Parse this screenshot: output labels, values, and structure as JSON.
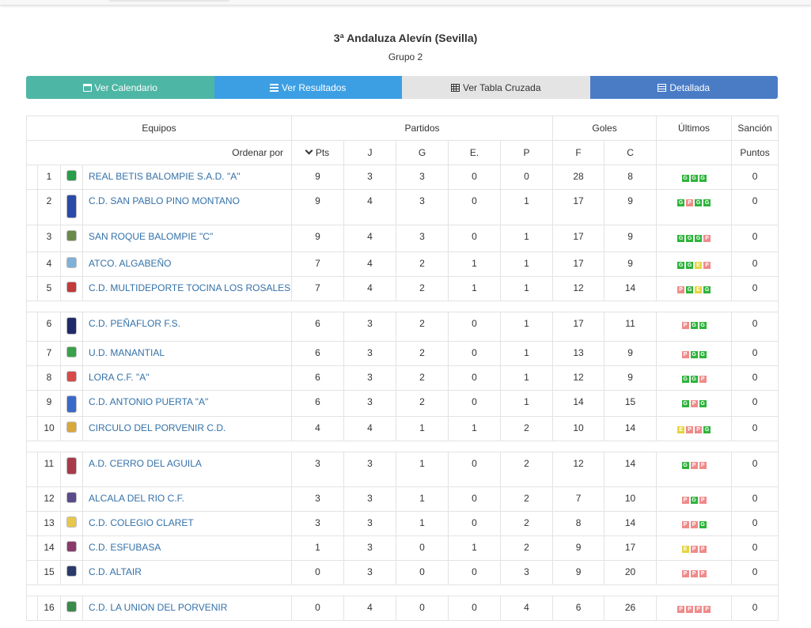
{
  "title": "3ª Andaluza Alevín (Sevilla)",
  "subtitle": "Grupo 2",
  "nav": {
    "calendar": "Ver Calendario",
    "results": "Ver Resultados",
    "cross": "Ver Tabla Cruzada",
    "detailed": "Detallada"
  },
  "headers": {
    "equipos": "Equipos",
    "partidos": "Partidos",
    "goles": "Goles",
    "ultimos": "Últimos",
    "sancion": "Sanción",
    "ordenar": "Ordenar por",
    "pts": "Pts",
    "j": "J",
    "g": "G",
    "e": "E.",
    "p": "P",
    "f": "F",
    "c": "C",
    "puntos": "Puntos"
  },
  "teams": [
    {
      "pos": "1",
      "name": "REAL BETIS BALOMPIE S.A.D. \"A\"",
      "pts": "9",
      "j": "3",
      "g": "3",
      "e": "0",
      "p": "0",
      "f": "28",
      "c": "8",
      "last": [
        "G",
        "G",
        "G"
      ],
      "sancion": "0",
      "crest": "#2a9d4a"
    },
    {
      "pos": "2",
      "name": "C.D. SAN PABLO PINO MONTANO",
      "pts": "9",
      "j": "4",
      "g": "3",
      "e": "0",
      "p": "1",
      "f": "17",
      "c": "9",
      "last": [
        "G",
        "P",
        "G",
        "G"
      ],
      "sancion": "0",
      "crest": "#2b4aa8"
    },
    {
      "pos": "3",
      "name": "SAN ROQUE BALOMPIE \"C\"",
      "pts": "9",
      "j": "4",
      "g": "3",
      "e": "0",
      "p": "1",
      "f": "17",
      "c": "9",
      "last": [
        "G",
        "G",
        "G",
        "P"
      ],
      "sancion": "0",
      "crest": "#6a8a4a"
    },
    {
      "pos": "4",
      "name": "ATCO. ALGABEÑO",
      "pts": "7",
      "j": "4",
      "g": "2",
      "e": "1",
      "p": "1",
      "f": "17",
      "c": "9",
      "last": [
        "G",
        "G",
        "E",
        "P"
      ],
      "sancion": "0",
      "crest": "#7fb0d8"
    },
    {
      "pos": "5",
      "name": "C.D. MULTIDEPORTE TOCINA LOS ROSALES",
      "pts": "7",
      "j": "4",
      "g": "2",
      "e": "1",
      "p": "1",
      "f": "12",
      "c": "14",
      "last": [
        "P",
        "G",
        "E",
        "G"
      ],
      "sancion": "0",
      "crest": "#c23a3a"
    },
    {
      "pos": "6",
      "name": "C.D. PEÑAFLOR F.S.",
      "pts": "6",
      "j": "3",
      "g": "2",
      "e": "0",
      "p": "1",
      "f": "17",
      "c": "11",
      "last": [
        "P",
        "G",
        "G"
      ],
      "sancion": "0",
      "crest": "#1f2a6a"
    },
    {
      "pos": "7",
      "name": "U.D. MANANTIAL",
      "pts": "6",
      "j": "3",
      "g": "2",
      "e": "0",
      "p": "1",
      "f": "13",
      "c": "9",
      "last": [
        "P",
        "G",
        "G"
      ],
      "sancion": "0",
      "crest": "#3aa04a"
    },
    {
      "pos": "8",
      "name": "LORA C.F. \"A\"",
      "pts": "6",
      "j": "3",
      "g": "2",
      "e": "0",
      "p": "1",
      "f": "12",
      "c": "9",
      "last": [
        "G",
        "G",
        "P"
      ],
      "sancion": "0",
      "crest": "#d84a4a"
    },
    {
      "pos": "9",
      "name": "C.D. ANTONIO PUERTA \"A\"",
      "pts": "6",
      "j": "3",
      "g": "2",
      "e": "0",
      "p": "1",
      "f": "14",
      "c": "15",
      "last": [
        "G",
        "P",
        "G"
      ],
      "sancion": "0",
      "crest": "#3a6ac8"
    },
    {
      "pos": "10",
      "name": "CIRCULO DEL PORVENIR C.D.",
      "pts": "4",
      "j": "4",
      "g": "1",
      "e": "1",
      "p": "2",
      "f": "10",
      "c": "14",
      "last": [
        "E",
        "P",
        "P",
        "G"
      ],
      "sancion": "0",
      "crest": "#d8a83a"
    },
    {
      "pos": "11",
      "name": "A.D. CERRO DEL AGUILA",
      "pts": "3",
      "j": "3",
      "g": "1",
      "e": "0",
      "p": "2",
      "f": "12",
      "c": "14",
      "last": [
        "G",
        "P",
        "P"
      ],
      "sancion": "0",
      "crest": "#a83a4a"
    },
    {
      "pos": "12",
      "name": "ALCALA DEL RIO C.F.",
      "pts": "3",
      "j": "3",
      "g": "1",
      "e": "0",
      "p": "2",
      "f": "7",
      "c": "10",
      "last": [
        "P",
        "G",
        "P"
      ],
      "sancion": "0",
      "crest": "#5a4a8a"
    },
    {
      "pos": "13",
      "name": "C.D. COLEGIO CLARET",
      "pts": "3",
      "j": "3",
      "g": "1",
      "e": "0",
      "p": "2",
      "f": "8",
      "c": "14",
      "last": [
        "P",
        "P",
        "G"
      ],
      "sancion": "0",
      "crest": "#e8c84a"
    },
    {
      "pos": "14",
      "name": "C.D. ESFUBASA",
      "pts": "1",
      "j": "3",
      "g": "0",
      "e": "1",
      "p": "2",
      "f": "9",
      "c": "17",
      "last": [
        "E",
        "P",
        "P"
      ],
      "sancion": "0",
      "crest": "#8a3a6a"
    },
    {
      "pos": "15",
      "name": "C.D. ALTAIR",
      "pts": "0",
      "j": "3",
      "g": "0",
      "e": "0",
      "p": "3",
      "f": "9",
      "c": "20",
      "last": [
        "P",
        "P",
        "P"
      ],
      "sancion": "0",
      "crest": "#2a3a6a"
    },
    {
      "pos": "16",
      "name": "C.D. LA UNION DEL PORVENIR",
      "pts": "0",
      "j": "4",
      "g": "0",
      "e": "0",
      "p": "4",
      "f": "6",
      "c": "26",
      "last": [
        "P",
        "P",
        "P",
        "P"
      ],
      "sancion": "0",
      "crest": "#3a8a4a"
    }
  ]
}
